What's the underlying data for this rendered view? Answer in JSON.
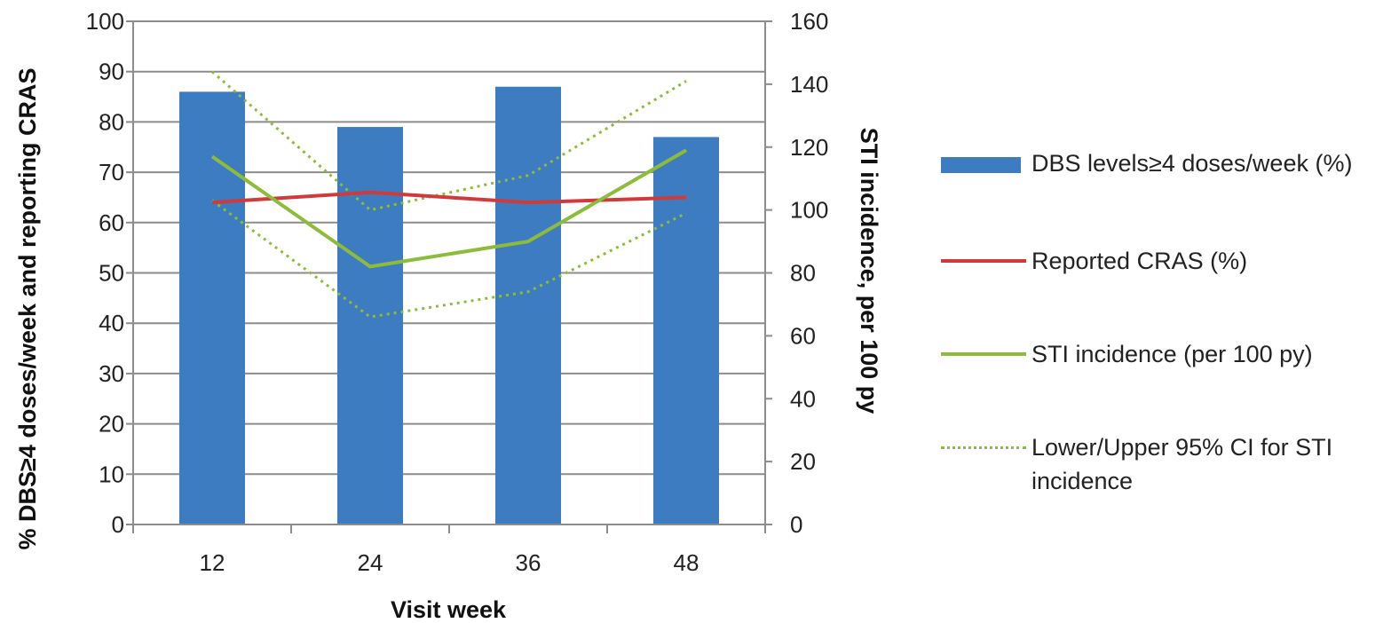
{
  "chart_data": {
    "type": "bar",
    "categories": [
      "12",
      "24",
      "36",
      "48"
    ],
    "xlabel": "Visit week",
    "ylabel_left": "% DBS≥4 doses/week and reporting CRAS",
    "ylabel_right": "STI incidence, per 100 py",
    "ylim_left": [
      0,
      100
    ],
    "ylim_right": [
      0,
      160
    ],
    "yticks_left": [
      "0",
      "10",
      "20",
      "30",
      "40",
      "50",
      "60",
      "70",
      "80",
      "90",
      "100"
    ],
    "yticks_right": [
      "0",
      "20",
      "40",
      "60",
      "80",
      "100",
      "120",
      "140",
      "160"
    ],
    "grid": true,
    "legend_position": "right",
    "series": [
      {
        "name": "DBS levels≥4 doses/week (%)",
        "type": "bar",
        "axis": "left",
        "color": "#3d7cc0",
        "values": [
          86,
          79,
          87,
          77
        ]
      },
      {
        "name": "Reported CRAS (%)",
        "type": "line",
        "axis": "left",
        "color": "#cf3a3a",
        "values": [
          64,
          66,
          64,
          65
        ]
      },
      {
        "name": "STI incidence (per 100 py)",
        "type": "line",
        "axis": "right",
        "color": "#8dbb3b",
        "values": [
          117,
          82,
          90,
          119
        ]
      },
      {
        "name": "Lower/Upper 95% CI for STI incidence",
        "type": "line-dotted",
        "axis": "right",
        "color": "#8dbb3b",
        "upper": [
          144,
          100,
          111,
          141
        ],
        "lower": [
          103,
          66,
          74,
          99
        ]
      }
    ]
  }
}
